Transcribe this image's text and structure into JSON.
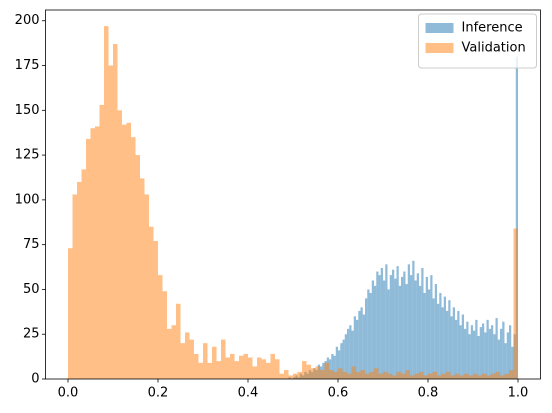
{
  "chart_data": {
    "type": "histogram",
    "series": [
      {
        "name": "Inference",
        "color": "#1f77b4",
        "alpha": 0.5,
        "bins": [
          0.48,
          0.485,
          0.49,
          0.495,
          0.5,
          0.505,
          0.51,
          0.515,
          0.52,
          0.525,
          0.53,
          0.535,
          0.54,
          0.545,
          0.55,
          0.555,
          0.56,
          0.565,
          0.57,
          0.575,
          0.58,
          0.585,
          0.59,
          0.595,
          0.6,
          0.605,
          0.61,
          0.615,
          0.62,
          0.625,
          0.63,
          0.635,
          0.64,
          0.645,
          0.65,
          0.655,
          0.66,
          0.665,
          0.67,
          0.675,
          0.68,
          0.685,
          0.69,
          0.695,
          0.7,
          0.705,
          0.71,
          0.715,
          0.72,
          0.725,
          0.73,
          0.735,
          0.74,
          0.745,
          0.75,
          0.755,
          0.76,
          0.765,
          0.77,
          0.775,
          0.78,
          0.785,
          0.79,
          0.795,
          0.8,
          0.805,
          0.81,
          0.815,
          0.82,
          0.825,
          0.83,
          0.835,
          0.84,
          0.845,
          0.85,
          0.855,
          0.86,
          0.865,
          0.87,
          0.875,
          0.88,
          0.885,
          0.89,
          0.895,
          0.9,
          0.905,
          0.91,
          0.915,
          0.92,
          0.925,
          0.93,
          0.935,
          0.94,
          0.945,
          0.95,
          0.955,
          0.96,
          0.965,
          0.97,
          0.975,
          0.98,
          0.985,
          0.99,
          0.995,
          1.0
        ],
        "values": [
          0,
          0,
          1,
          0,
          1,
          2,
          1,
          3,
          2,
          4,
          3,
          5,
          4,
          6,
          5,
          8,
          7,
          9,
          10,
          12,
          11,
          14,
          13,
          18,
          16,
          20,
          22,
          25,
          28,
          30,
          27,
          35,
          33,
          38,
          40,
          36,
          45,
          50,
          48,
          55,
          52,
          60,
          58,
          62,
          55,
          64,
          50,
          58,
          61,
          56,
          63,
          52,
          57,
          60,
          53,
          64,
          58,
          66,
          55,
          59,
          52,
          62,
          48,
          57,
          50,
          58,
          45,
          53,
          42,
          48,
          40,
          46,
          38,
          44,
          35,
          40,
          33,
          38,
          30,
          36,
          28,
          32,
          25,
          30,
          27,
          33,
          24,
          29,
          31,
          26,
          33,
          28,
          30,
          25,
          34,
          22,
          28,
          32,
          20,
          26,
          30,
          18,
          25,
          180
        ]
      },
      {
        "name": "Validation",
        "color": "#ff7f0e",
        "alpha": 0.5,
        "bins": [
          0,
          0.01,
          0.02,
          0.03,
          0.04,
          0.05,
          0.06,
          0.07,
          0.08,
          0.09,
          0.1,
          0.11,
          0.12,
          0.13,
          0.14,
          0.15,
          0.16,
          0.17,
          0.18,
          0.19,
          0.2,
          0.21,
          0.22,
          0.23,
          0.24,
          0.25,
          0.26,
          0.27,
          0.28,
          0.29,
          0.3,
          0.31,
          0.32,
          0.33,
          0.34,
          0.35,
          0.36,
          0.37,
          0.38,
          0.39,
          0.4,
          0.41,
          0.42,
          0.43,
          0.44,
          0.45,
          0.46,
          0.47,
          0.48,
          0.49,
          0.5,
          0.51,
          0.52,
          0.53,
          0.54,
          0.55,
          0.56,
          0.57,
          0.58,
          0.59,
          0.6,
          0.61,
          0.62,
          0.63,
          0.64,
          0.65,
          0.66,
          0.67,
          0.68,
          0.69,
          0.7,
          0.71,
          0.72,
          0.73,
          0.74,
          0.75,
          0.76,
          0.77,
          0.78,
          0.79,
          0.8,
          0.81,
          0.82,
          0.83,
          0.84,
          0.85,
          0.86,
          0.87,
          0.88,
          0.89,
          0.9,
          0.91,
          0.92,
          0.93,
          0.94,
          0.95,
          0.96,
          0.97,
          0.98,
          0.99,
          1.0
        ],
        "values": [
          73,
          103,
          110,
          117,
          134,
          140,
          141,
          153,
          197,
          175,
          187,
          150,
          142,
          143,
          135,
          125,
          112,
          103,
          85,
          77,
          58,
          49,
          28,
          30,
          42,
          20,
          26,
          22,
          14,
          9,
          20,
          9,
          18,
          10,
          22,
          12,
          14,
          10,
          13,
          14,
          12,
          7,
          12,
          11,
          9,
          14,
          11,
          3,
          5,
          2,
          3,
          4,
          10,
          8,
          6,
          7,
          5,
          9,
          5,
          4,
          6,
          4,
          3,
          7,
          4,
          5,
          3,
          4,
          6,
          3,
          4,
          3,
          2,
          4,
          3,
          5,
          2,
          3,
          4,
          2,
          3,
          4,
          2,
          3,
          4,
          2,
          3,
          2,
          3,
          2,
          3,
          2,
          3,
          2,
          3,
          4,
          2,
          3,
          5,
          84
        ]
      }
    ],
    "xlim": [
      -0.05,
      1.05
    ],
    "xticks": [
      {
        "value": 0,
        "label": "0.0"
      },
      0.2,
      0.4,
      0.6,
      0.8,
      {
        "value": 1,
        "label": "1.0"
      }
    ],
    "ylim": [
      0,
      206
    ],
    "yticks": [
      0,
      25,
      50,
      75,
      100,
      125,
      150,
      175,
      200
    ],
    "legend": "upper right"
  }
}
